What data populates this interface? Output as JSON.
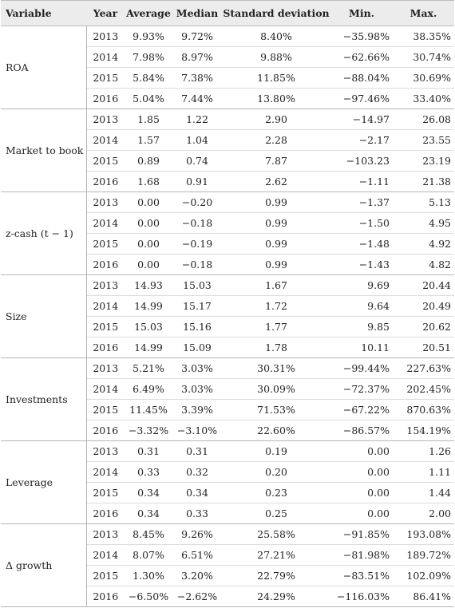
{
  "table": {
    "columns": [
      "Variable",
      "Year",
      "Average",
      "Median",
      "Standard deviation",
      "Min.",
      "Max."
    ],
    "groups": [
      {
        "variable": "ROA",
        "rows": [
          [
            "2013",
            "9.93%",
            "9.72%",
            "8.40%",
            "−35.98%",
            "38.35%"
          ],
          [
            "2014",
            "7.98%",
            "8.97%",
            "9.88%",
            "−62.66%",
            "30.74%"
          ],
          [
            "2015",
            "5.84%",
            "7.38%",
            "11.85%",
            "−88.04%",
            "30.69%"
          ],
          [
            "2016",
            "5.04%",
            "7.44%",
            "13.80%",
            "−97.46%",
            "33.40%"
          ]
        ]
      },
      {
        "variable": "Market to book",
        "rows": [
          [
            "2013",
            "1.85",
            "1.22",
            "2.90",
            "−14.97",
            "26.08"
          ],
          [
            "2014",
            "1.57",
            "1.04",
            "2.28",
            "−2.17",
            "23.55"
          ],
          [
            "2015",
            "0.89",
            "0.74",
            "7.87",
            "−103.23",
            "23.19"
          ],
          [
            "2016",
            "1.68",
            "0.91",
            "2.62",
            "−1.11",
            "21.38"
          ]
        ]
      },
      {
        "variable": "z-cash (t − 1)",
        "rows": [
          [
            "2013",
            "0.00",
            "−0.20",
            "0.99",
            "−1.37",
            "5.13"
          ],
          [
            "2014",
            "0.00",
            "−0.18",
            "0.99",
            "−1.50",
            "4.95"
          ],
          [
            "2015",
            "0.00",
            "−0.19",
            "0.99",
            "−1.48",
            "4.92"
          ],
          [
            "2016",
            "0.00",
            "−0.18",
            "0.99",
            "−1.43",
            "4.82"
          ]
        ]
      },
      {
        "variable": "Size",
        "rows": [
          [
            "2013",
            "14.93",
            "15.03",
            "1.67",
            "9.69",
            "20.44"
          ],
          [
            "2014",
            "14.99",
            "15.17",
            "1.72",
            "9.64",
            "20.49"
          ],
          [
            "2015",
            "15.03",
            "15.16",
            "1.77",
            "9.85",
            "20.62"
          ],
          [
            "2016",
            "14.99",
            "15.09",
            "1.78",
            "10.11",
            "20.51"
          ]
        ]
      },
      {
        "variable": "Investments",
        "rows": [
          [
            "2013",
            "5.21%",
            "3.03%",
            "30.31%",
            "−99.44%",
            "227.63%"
          ],
          [
            "2014",
            "6.49%",
            "3.03%",
            "30.09%",
            "−72.37%",
            "202.45%"
          ],
          [
            "2015",
            "11.45%",
            "3.39%",
            "71.53%",
            "−67.22%",
            "870.63%"
          ],
          [
            "2016",
            "−3.32%",
            "−3.10%",
            "22.60%",
            "−86.57%",
            "154.19%"
          ]
        ]
      },
      {
        "variable": "Leverage",
        "rows": [
          [
            "2013",
            "0.31",
            "0.31",
            "0.19",
            "0.00",
            "1.26"
          ],
          [
            "2014",
            "0.33",
            "0.32",
            "0.20",
            "0.00",
            "1.11"
          ],
          [
            "2015",
            "0.34",
            "0.34",
            "0.23",
            "0.00",
            "1.44"
          ],
          [
            "2016",
            "0.34",
            "0.33",
            "0.25",
            "0.00",
            "2.00"
          ]
        ]
      },
      {
        "variable": "Δ growth",
        "rows": [
          [
            "2013",
            "8.45%",
            "9.26%",
            "25.58%",
            "−91.85%",
            "193.08%"
          ],
          [
            "2014",
            "8.07%",
            "6.51%",
            "27.21%",
            "−81.98%",
            "189.72%"
          ],
          [
            "2015",
            "1.30%",
            "3.20%",
            "22.79%",
            "−83.51%",
            "102.09%"
          ],
          [
            "2016",
            "−6.50%",
            "−2.62%",
            "24.29%",
            "−116.03%",
            "86.41%"
          ]
        ]
      }
    ]
  }
}
